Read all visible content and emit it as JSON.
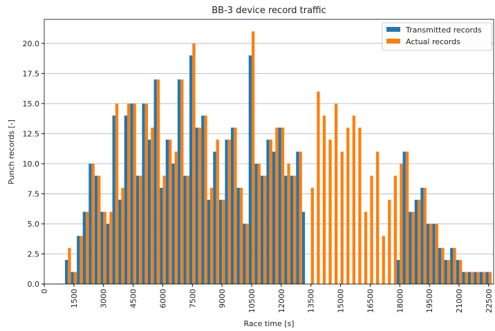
{
  "chart_data": {
    "type": "bar",
    "title": "BB-3 device record traffic",
    "x_label": "Race time [s]",
    "y_label": "Punch records [-]",
    "x": [
      0,
      300,
      600,
      900,
      1200,
      1500,
      1800,
      2100,
      2400,
      2700,
      3000,
      3300,
      3600,
      3900,
      4200,
      4500,
      4800,
      5100,
      5400,
      5700,
      6000,
      6300,
      6600,
      6900,
      7200,
      7500,
      7800,
      8100,
      8400,
      8700,
      9000,
      9300,
      9600,
      9900,
      10200,
      10500,
      10800,
      11100,
      11400,
      11700,
      12000,
      12300,
      12600,
      12900,
      13200,
      13500,
      13800,
      14100,
      14400,
      14700,
      15000,
      15300,
      15600,
      15900,
      16200,
      16500,
      16800,
      17100,
      17400,
      17700,
      18000,
      18300,
      18600,
      18900,
      19200,
      19500,
      19800,
      20100,
      20400,
      20700,
      21000,
      21300,
      21600,
      21900,
      22200,
      22500
    ],
    "series": [
      {
        "name": "Transmitted records",
        "color": "#1f77b4",
        "values": [
          0,
          0,
          0,
          0,
          2,
          1,
          4,
          6,
          10,
          9,
          6,
          5,
          14,
          7,
          14,
          15,
          9,
          15,
          12,
          17,
          8,
          12,
          10,
          17,
          9,
          19,
          13,
          14,
          7,
          11,
          7,
          12,
          13,
          8,
          5,
          19,
          10,
          9,
          12,
          11,
          13,
          9,
          9,
          11,
          6,
          0,
          0,
          0,
          0,
          0,
          0,
          0,
          0,
          0,
          0,
          0,
          0,
          0,
          0,
          0,
          2,
          11,
          6,
          7,
          8,
          5,
          5,
          3,
          2,
          3,
          2,
          1,
          1,
          1,
          1,
          1
        ]
      },
      {
        "name": "Actual records",
        "color": "#ff7f0e",
        "values": [
          0,
          0,
          0,
          0,
          3,
          1,
          4,
          6,
          10,
          9,
          6,
          6,
          15,
          8,
          15,
          15,
          9,
          15,
          13,
          17,
          9,
          12,
          11,
          17,
          9,
          20,
          13,
          14,
          8,
          12,
          7,
          12,
          13,
          8,
          5,
          21,
          10,
          9,
          12,
          13,
          13,
          10,
          9,
          11,
          0,
          8,
          16,
          14,
          12,
          15,
          11,
          13,
          14,
          13,
          6,
          9,
          11,
          4,
          7,
          9,
          10,
          11,
          6,
          7,
          8,
          5,
          5,
          3,
          2,
          3,
          2,
          1,
          1,
          1,
          1,
          1
        ]
      }
    ],
    "xlim": [
      0,
      22750
    ],
    "xticks": [
      0,
      1500,
      3000,
      4500,
      6000,
      7500,
      9000,
      10500,
      12000,
      13500,
      15000,
      16500,
      18000,
      19500,
      21000,
      22500
    ],
    "ylim": [
      0,
      22
    ],
    "yticks": [
      {
        "value": 0,
        "label": "0.0"
      },
      {
        "value": 2.5,
        "label": "2.5"
      },
      {
        "value": 5,
        "label": "5.0"
      },
      {
        "value": 7.5,
        "label": "7.5"
      },
      {
        "value": 10,
        "label": "10.0"
      },
      {
        "value": 12.5,
        "label": "12.5"
      },
      {
        "value": 15,
        "label": "15.0"
      },
      {
        "value": 17.5,
        "label": "17.5"
      },
      {
        "value": 20,
        "label": "20.0"
      }
    ],
    "grid": "y",
    "legend": "upper right"
  }
}
